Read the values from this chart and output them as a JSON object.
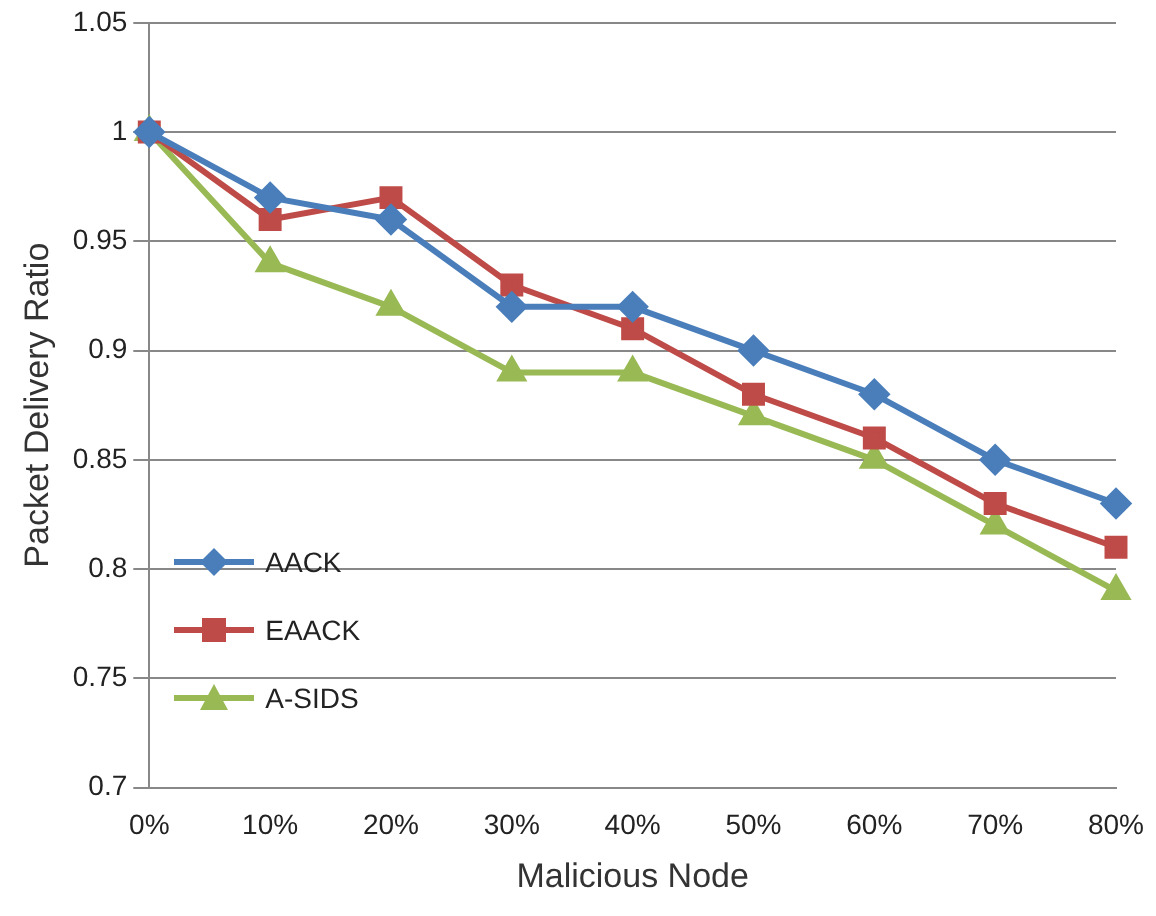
{
  "chart_data": {
    "type": "line",
    "xlabel": "Malicious Node",
    "ylabel": "Packet Delivery Ratio",
    "categories": [
      "0%",
      "10%",
      "20%",
      "30%",
      "40%",
      "50%",
      "60%",
      "70%",
      "80%"
    ],
    "series": [
      {
        "name": "AACK",
        "color": "#4a7ebb",
        "marker": "diamond",
        "values": [
          1,
          0.97,
          0.96,
          0.92,
          0.92,
          0.9,
          0.88,
          0.85,
          0.83
        ]
      },
      {
        "name": "EAACK",
        "color": "#be4b48",
        "marker": "square",
        "values": [
          1,
          0.96,
          0.97,
          0.93,
          0.91,
          0.88,
          0.86,
          0.83,
          0.81
        ]
      },
      {
        "name": "A-SIDS",
        "color": "#98b954",
        "marker": "triangle",
        "values": [
          1,
          0.94,
          0.92,
          0.89,
          0.89,
          0.87,
          0.85,
          0.82,
          0.79
        ]
      }
    ],
    "ylim": [
      0.7,
      1.05
    ],
    "yticks": [
      0.7,
      0.75,
      0.8,
      0.85,
      0.9,
      0.95,
      1,
      1.05
    ],
    "grid": "y",
    "legend": "bottom left",
    "line_style": "solid"
  }
}
